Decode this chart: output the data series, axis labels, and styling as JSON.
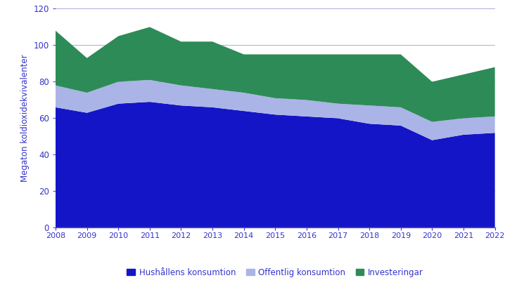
{
  "years": [
    2008,
    2009,
    2010,
    2011,
    2012,
    2013,
    2014,
    2015,
    2016,
    2017,
    2018,
    2019,
    2020,
    2021,
    2022
  ],
  "hushallens": [
    66,
    63,
    68,
    69,
    67,
    66,
    64,
    62,
    61,
    60,
    57,
    56,
    48,
    51,
    52
  ],
  "offentlig": [
    12,
    11,
    12,
    12,
    11,
    10,
    10,
    9,
    9,
    8,
    10,
    10,
    10,
    9,
    9
  ],
  "investeringar": [
    30,
    19,
    25,
    29,
    24,
    26,
    21,
    24,
    25,
    27,
    28,
    29,
    22,
    24,
    27
  ],
  "color_hushallens": "#1515c8",
  "color_offentlig": "#aab4e6",
  "color_investeringar": "#2d8b57",
  "ylabel": "Megaton koldioxidekvivalenter",
  "ylim": [
    0,
    120
  ],
  "yticks": [
    0,
    20,
    40,
    60,
    80,
    100,
    120
  ],
  "legend_labels": [
    "Hushållens konsumtion",
    "Offentlig konsumtion",
    "Investeringar"
  ],
  "grid_color": "#aaaadd",
  "axis_color": "#5555aa",
  "tick_color": "#5555aa",
  "label_color": "#5555aa",
  "font_color": "#3333cc"
}
